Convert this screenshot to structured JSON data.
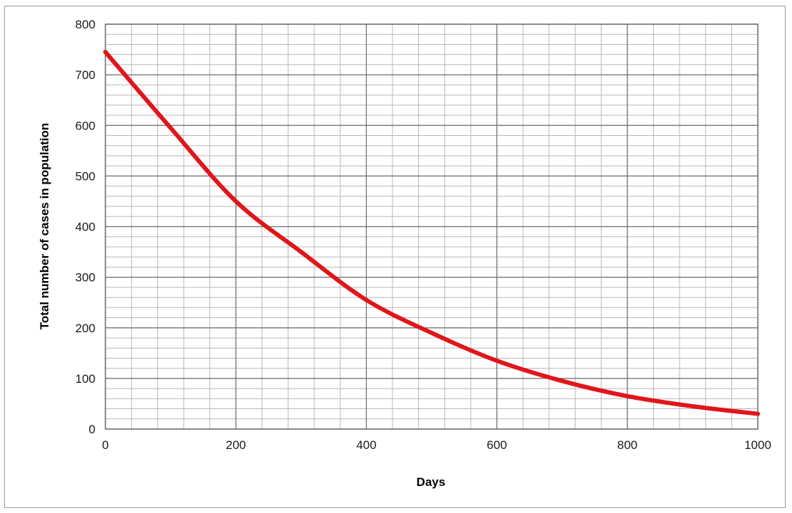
{
  "chart_data": {
    "type": "line",
    "title": "",
    "xlabel": "Days",
    "ylabel": "Total number of cases in population",
    "xlim": [
      0,
      1000
    ],
    "ylim": [
      0,
      800
    ],
    "x_ticks": [
      0,
      200,
      400,
      600,
      800,
      1000
    ],
    "y_ticks": [
      0,
      100,
      200,
      300,
      400,
      500,
      600,
      700,
      800
    ],
    "grid": true,
    "legend": "none",
    "colors": {
      "line": "#e0161b",
      "grid_major": "#6e6e6e",
      "grid_minor": "#b8b8b8"
    },
    "series": [
      {
        "x": [
          0,
          100,
          200,
          300,
          400,
          500,
          600,
          700,
          800,
          900,
          1000
        ],
        "y": [
          745,
          595,
          450,
          350,
          255,
          190,
          135,
          95,
          65,
          45,
          30
        ]
      }
    ]
  }
}
